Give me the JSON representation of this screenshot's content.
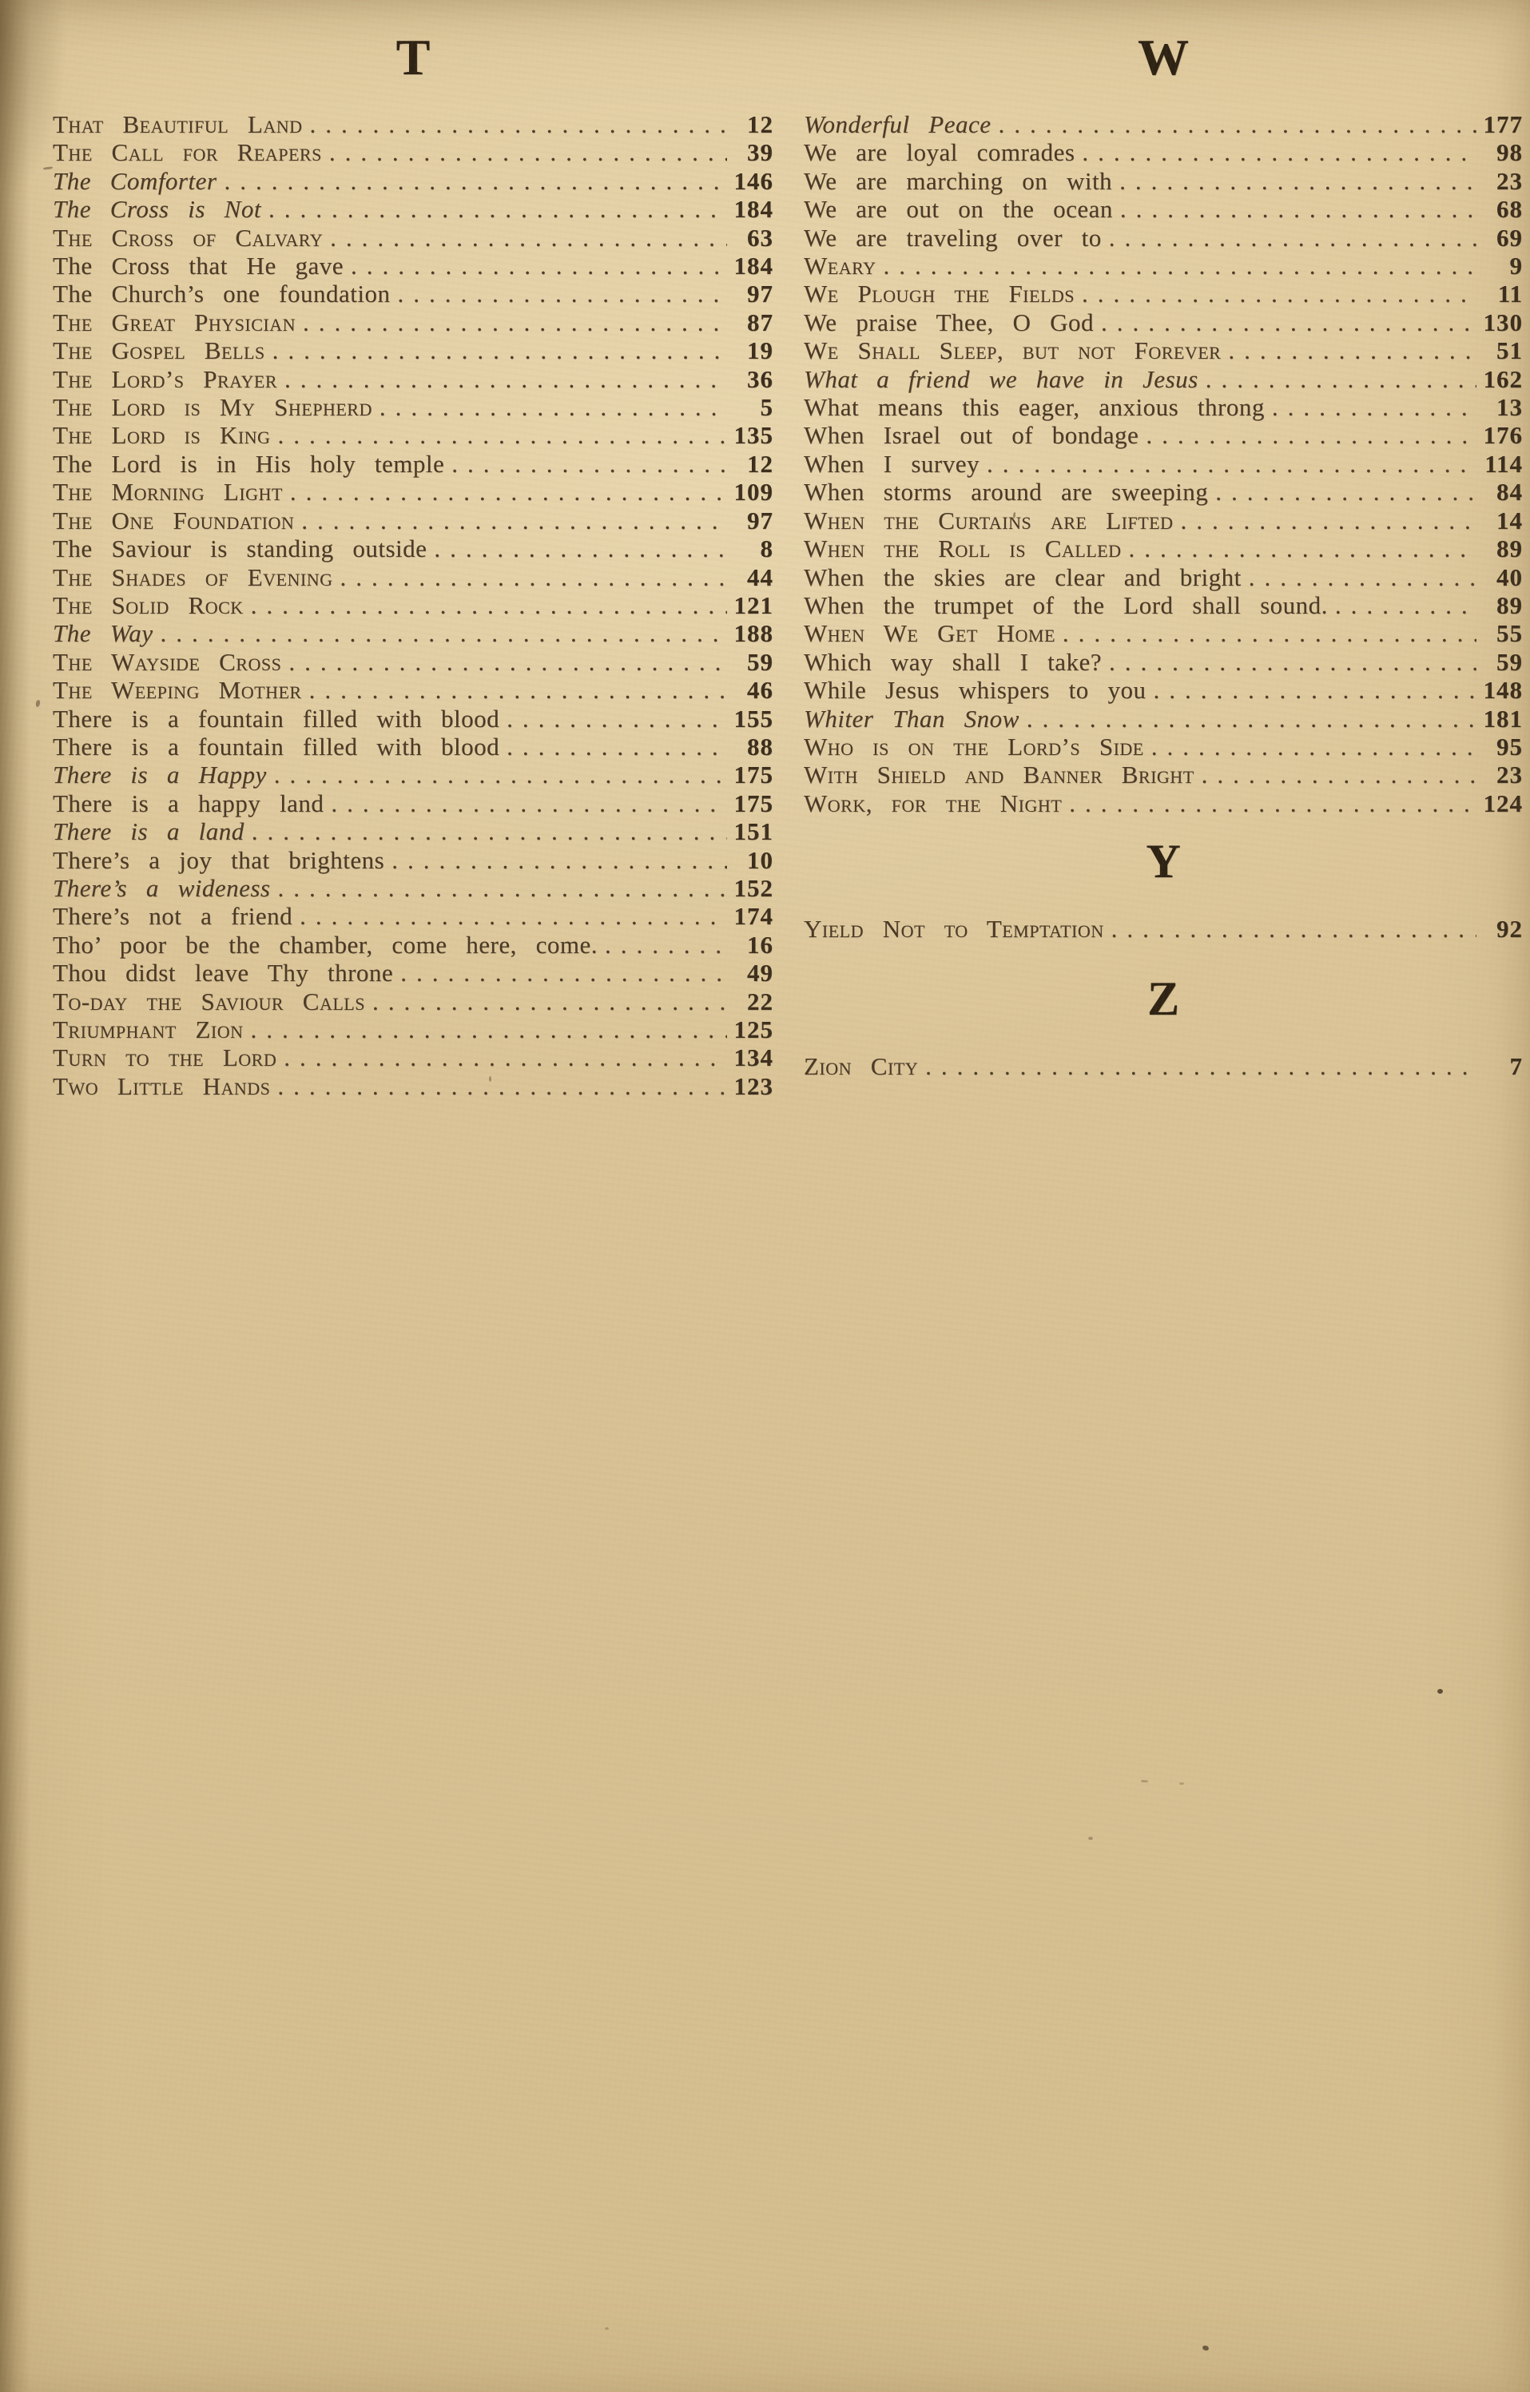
{
  "document": "hymnal-index-page",
  "colors": {
    "paper": "#d8c295",
    "ink": "#4a3926",
    "header_ink": "#2d2213",
    "number_ink": "#3c2e1d"
  },
  "columns": [
    {
      "sections": [
        {
          "header": "T",
          "entries": [
            {
              "t": "That Beautiful Land",
              "s": "smallcaps",
              "p": "12"
            },
            {
              "t": "The Call for Reapers",
              "s": "smallcaps",
              "p": "39"
            },
            {
              "t": "The Comforter",
              "s": "italic",
              "p": "146"
            },
            {
              "t": "The Cross is Not",
              "s": "italic",
              "p": "184"
            },
            {
              "t": "The Cross of Calvary",
              "s": "smallcaps",
              "p": "63"
            },
            {
              "t": "The Cross that He gave",
              "s": "roman",
              "p": "184"
            },
            {
              "t": "The Church’s one foundation",
              "s": "roman",
              "p": "97"
            },
            {
              "t": "The Great Physician",
              "s": "smallcaps",
              "p": "87"
            },
            {
              "t": "The Gospel Bells",
              "s": "smallcaps",
              "p": "19"
            },
            {
              "t": "The Lord’s Prayer",
              "s": "smallcaps",
              "p": "36"
            },
            {
              "t": "The Lord is My Shepherd",
              "s": "smallcaps",
              "p": "5"
            },
            {
              "t": "The Lord is King",
              "s": "smallcaps",
              "p": "135"
            },
            {
              "t": "The Lord is in His holy temple",
              "s": "roman",
              "p": "12"
            },
            {
              "t": "The Morning Light",
              "s": "smallcaps",
              "p": "109"
            },
            {
              "t": "The One Foundation",
              "s": "smallcaps",
              "p": "97"
            },
            {
              "t": "The Saviour is standing outside",
              "s": "roman",
              "p": "8"
            },
            {
              "t": "The Shades of Evening",
              "s": "smallcaps",
              "p": "44"
            },
            {
              "t": "The Solid Rock",
              "s": "smallcaps",
              "p": "121"
            },
            {
              "t": "The Way",
              "s": "italic",
              "p": "188"
            },
            {
              "t": "The Wayside Cross",
              "s": "smallcaps",
              "p": "59"
            },
            {
              "t": "The Weeping Mother",
              "s": "smallcaps",
              "p": "46"
            },
            {
              "t": "There is a fountain filled with blood",
              "s": "roman",
              "p": "155"
            },
            {
              "t": "There is a fountain filled with blood",
              "s": "roman",
              "p": "88"
            },
            {
              "t": "There is a Happy",
              "s": "italic",
              "p": "175"
            },
            {
              "t": "There is a happy land",
              "s": "roman",
              "p": "175"
            },
            {
              "t": "There is a land",
              "s": "italic",
              "p": "151"
            },
            {
              "t": "There’s a joy that brightens",
              "s": "roman",
              "p": "10"
            },
            {
              "t": "There’s a wideness",
              "s": "italic",
              "p": "152"
            },
            {
              "t": "There’s not a friend",
              "s": "roman",
              "p": "174"
            },
            {
              "t": "Tho’ poor be the chamber, come here, come.",
              "s": "roman",
              "p": "16"
            },
            {
              "t": "Thou didst leave Thy throne",
              "s": "roman",
              "p": "49"
            },
            {
              "t": "To-day the Saviour Calls",
              "s": "smallcaps",
              "p": "22"
            },
            {
              "t": "Triumphant Zion",
              "s": "smallcaps",
              "p": "125"
            },
            {
              "t": "Turn to the Lord",
              "s": "smallcaps",
              "p": "134"
            },
            {
              "t": "Two Little Hands",
              "s": "smallcaps",
              "p": "123"
            }
          ]
        }
      ]
    },
    {
      "sections": [
        {
          "header": "W",
          "entries": [
            {
              "t": "Wonderful Peace",
              "s": "italic",
              "p": "177"
            },
            {
              "t": "We are loyal comrades",
              "s": "roman",
              "p": "98"
            },
            {
              "t": "We are marching on with",
              "s": "roman",
              "p": "23"
            },
            {
              "t": "We are out on the ocean",
              "s": "roman",
              "p": "68"
            },
            {
              "t": "We are traveling over to",
              "s": "roman",
              "p": "69"
            },
            {
              "t": "Weary",
              "s": "smallcaps",
              "p": "9"
            },
            {
              "t": "We Plough the Fields",
              "s": "smallcaps",
              "p": "11"
            },
            {
              "t": "We praise Thee, O God",
              "s": "roman",
              "p": "130"
            },
            {
              "t": "We Shall Sleep, but not Forever",
              "s": "smallcaps",
              "p": "51"
            },
            {
              "t": "What a friend we have in Jesus",
              "s": "italic",
              "p": "162"
            },
            {
              "t": "What means this eager, anxious throng",
              "s": "roman",
              "p": "13"
            },
            {
              "t": "When Israel out of bondage",
              "s": "roman",
              "p": "176"
            },
            {
              "t": "When I survey",
              "s": "roman",
              "p": "114"
            },
            {
              "t": "When storms around are sweeping",
              "s": "roman",
              "p": "84"
            },
            {
              "t": "When the Curtains are Lifted",
              "s": "smallcaps",
              "p": "14"
            },
            {
              "t": "When the Roll is Called",
              "s": "smallcaps",
              "p": "89"
            },
            {
              "t": "When the skies are clear and bright",
              "s": "roman",
              "p": "40"
            },
            {
              "t": "When the trumpet of the Lord shall sound.",
              "s": "roman",
              "p": "89"
            },
            {
              "t": "When We Get Home",
              "s": "smallcaps",
              "p": "55"
            },
            {
              "t": "Which way shall I take?",
              "s": "roman",
              "p": "59"
            },
            {
              "t": "While Jesus whispers to you",
              "s": "roman",
              "p": "148"
            },
            {
              "t": "Whiter Than Snow",
              "s": "italic",
              "p": "181"
            },
            {
              "t": "Who is on the Lord’s Side",
              "s": "smallcaps",
              "p": "95"
            },
            {
              "t": "With Shield and Banner Bright",
              "s": "smallcaps",
              "p": "23"
            },
            {
              "t": "Work, for the Night",
              "s": "smallcaps",
              "p": "124"
            }
          ]
        },
        {
          "header": "Y",
          "entries": [
            {
              "t": "Yield Not to Temptation",
              "s": "smallcaps",
              "p": "92"
            }
          ]
        },
        {
          "header": "Z",
          "entries": [
            {
              "t": "Zion City",
              "s": "smallcaps",
              "p": "7"
            }
          ]
        }
      ]
    }
  ]
}
